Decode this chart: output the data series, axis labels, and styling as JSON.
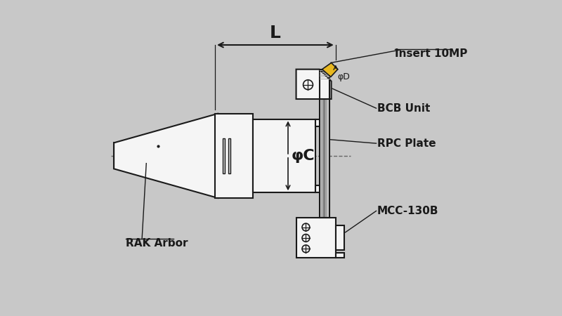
{
  "bg_color": "#c8c8c8",
  "line_color": "#1a1a1a",
  "fill_white": "#f5f5f5",
  "fill_light_gray": "#d0d0d0",
  "fill_mid_gray": "#a8a8a8",
  "fill_dark_gray": "#808080",
  "insert_color": "#e8b820",
  "dashed_color": "#666666",
  "label_insert": "Insert 10MP",
  "label_bcb": "BCB Unit",
  "label_rpc": "RPC Plate",
  "label_mcc": "MCC-130B",
  "label_rak": "RAK Arbor",
  "label_L": "L",
  "label_phiC": "φC",
  "label_phiD": "φD",
  "label_fontsize": 11,
  "dim_fontsize": 16
}
